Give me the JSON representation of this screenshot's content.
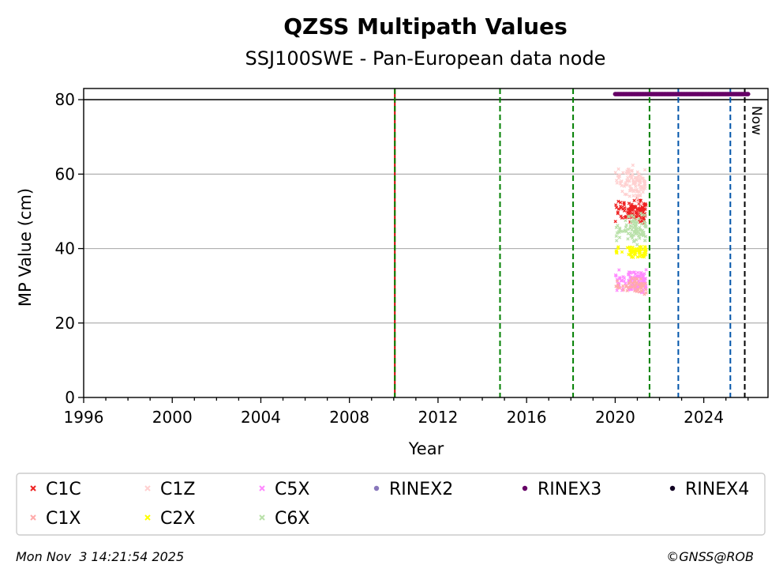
{
  "chart_data": {
    "type": "scatter",
    "title": "QZSS Multipath Values",
    "subtitle": "SSJ100SWE - Pan-European data node",
    "xlabel": "Year",
    "ylabel": "MP Value (cm)",
    "xlim": [
      1996,
      2026.9
    ],
    "ylim": [
      0,
      83
    ],
    "xticks": [
      1996,
      2000,
      2004,
      2008,
      2012,
      2016,
      2020,
      2024
    ],
    "yticks": [
      0,
      20,
      40,
      60,
      80
    ],
    "grid": "horizontal",
    "reference_line_y": 80,
    "vlines": [
      {
        "x": 2010.05,
        "color": "#cc0000",
        "style": "solid"
      },
      {
        "x": 2010.05,
        "color": "#008000",
        "style": "dashed"
      },
      {
        "x": 2014.8,
        "color": "#008000",
        "style": "dashed"
      },
      {
        "x": 2018.1,
        "color": "#008000",
        "style": "dashed"
      },
      {
        "x": 2021.55,
        "color": "#008000",
        "style": "dashed"
      },
      {
        "x": 2022.85,
        "color": "#0055aa",
        "style": "dashed"
      },
      {
        "x": 2025.2,
        "color": "#0055aa",
        "style": "dashed"
      },
      {
        "x": 2025.85,
        "color": "#000000",
        "style": "dashed"
      }
    ],
    "now_label": "Now",
    "rinex_bar": {
      "name": "RINEX3",
      "x_start": 2020.0,
      "x_end": 2026.0,
      "y": 81.5,
      "color": "#660066"
    },
    "series": [
      {
        "name": "C1C",
        "color": "#ee2222",
        "marker": "x",
        "x_start": 2020.0,
        "x_end": 2021.4,
        "center": 50,
        "spread": 2.2,
        "count": 110
      },
      {
        "name": "C1Z",
        "color": "#ffd0d0",
        "marker": "x",
        "x_start": 2020.0,
        "x_end": 2021.4,
        "center": 57.5,
        "spread": 2.8,
        "count": 110
      },
      {
        "name": "C5X",
        "color": "#ff88ff",
        "marker": "x",
        "x_start": 2020.0,
        "x_end": 2021.4,
        "center": 31,
        "spread": 2.0,
        "count": 120
      },
      {
        "name": "RINEX2",
        "color": "#8877bb",
        "marker": "o",
        "count": 0
      },
      {
        "name": "RINEX3",
        "color": "#660066",
        "marker": "o",
        "count": 0
      },
      {
        "name": "RINEX4",
        "color": "#110022",
        "marker": "o",
        "count": 0
      },
      {
        "name": "C1X",
        "color": "#ffaaaa",
        "marker": "x",
        "x_start": 2020.0,
        "x_end": 2021.4,
        "center": 30,
        "spread": 1.5,
        "count": 50
      },
      {
        "name": "C2X",
        "color": "#ffff00",
        "marker": "x",
        "x_start": 2020.0,
        "x_end": 2021.4,
        "center": 39,
        "spread": 1.2,
        "count": 70
      },
      {
        "name": "C6X",
        "color": "#b8e0a8",
        "marker": "x",
        "x_start": 2020.0,
        "x_end": 2021.4,
        "center": 45,
        "spread": 2.5,
        "count": 90
      }
    ]
  },
  "footer": {
    "timestamp": "Mon Nov  3 14:21:54 2025",
    "credit": "©GNSS@ROB"
  }
}
